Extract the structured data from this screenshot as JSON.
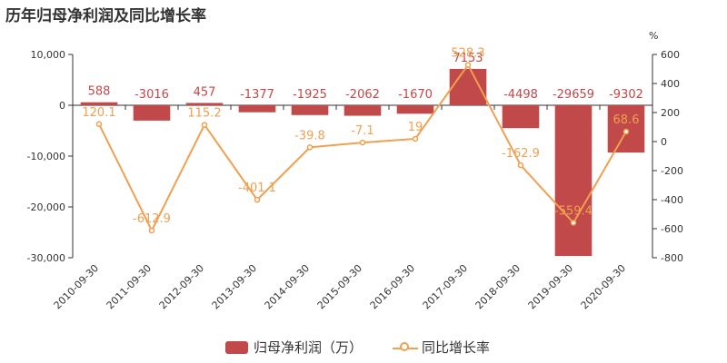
{
  "title": "历年归母净利润及同比增长率",
  "right_axis_unit": "%",
  "colors": {
    "bar": "#c1494a",
    "bar_label": "#c1494a",
    "line": "#f0a050",
    "line_label": "#f0a050",
    "axis_text": "#333333"
  },
  "legend": [
    {
      "label": "归母净利润（万）",
      "kind": "bar"
    },
    {
      "label": "同比增长率",
      "kind": "line"
    }
  ],
  "chart_data": {
    "type": "bar",
    "title": "历年归母净利润及同比增长率",
    "categories": [
      "2010-09-30",
      "2011-09-30",
      "2012-09-30",
      "2013-09-30",
      "2014-09-30",
      "2015-09-30",
      "2016-09-30",
      "2017-09-30",
      "2018-09-30",
      "2019-09-30",
      "2020-09-30"
    ],
    "series": [
      {
        "name": "归母净利润（万）",
        "type": "bar",
        "axis": "left",
        "values": [
          588,
          -3016,
          457,
          -1377,
          -1925,
          -2062,
          -1670,
          7153,
          -4498,
          -29659,
          -9302
        ],
        "labels": [
          "588",
          "-3016",
          "457",
          "-1377",
          "-1925",
          "-2062",
          "-1670",
          "7153",
          "-4498",
          "-29659",
          "-9302"
        ]
      },
      {
        "name": "同比增长率",
        "type": "line",
        "axis": "right",
        "values": [
          120.1,
          -612.9,
          115.2,
          -401.1,
          -39.8,
          -7.1,
          19,
          528.3,
          -162.9,
          -559.4,
          68.6
        ],
        "labels": [
          "120.1",
          "-612.9",
          "115.2",
          "-401.1",
          "-39.8",
          "-7.1",
          "19",
          "528.3",
          "-162.9",
          "-559.4",
          "68.6"
        ]
      }
    ],
    "y_left": {
      "ylim": [
        -30000,
        10000
      ],
      "ticks": [
        10000,
        0,
        -10000,
        -20000,
        -30000
      ],
      "tick_labels": [
        "10,000",
        "0",
        "-10,000",
        "-20,000",
        "-30,000"
      ]
    },
    "y_right": {
      "ylim": [
        -800,
        600
      ],
      "ticks": [
        600,
        400,
        200,
        0,
        -200,
        -400,
        -600,
        -800
      ],
      "tick_labels": [
        "600",
        "400",
        "200",
        "0",
        "-200",
        "-400",
        "-600",
        "-800"
      ]
    },
    "grid": false,
    "legend_position": "bottom"
  }
}
